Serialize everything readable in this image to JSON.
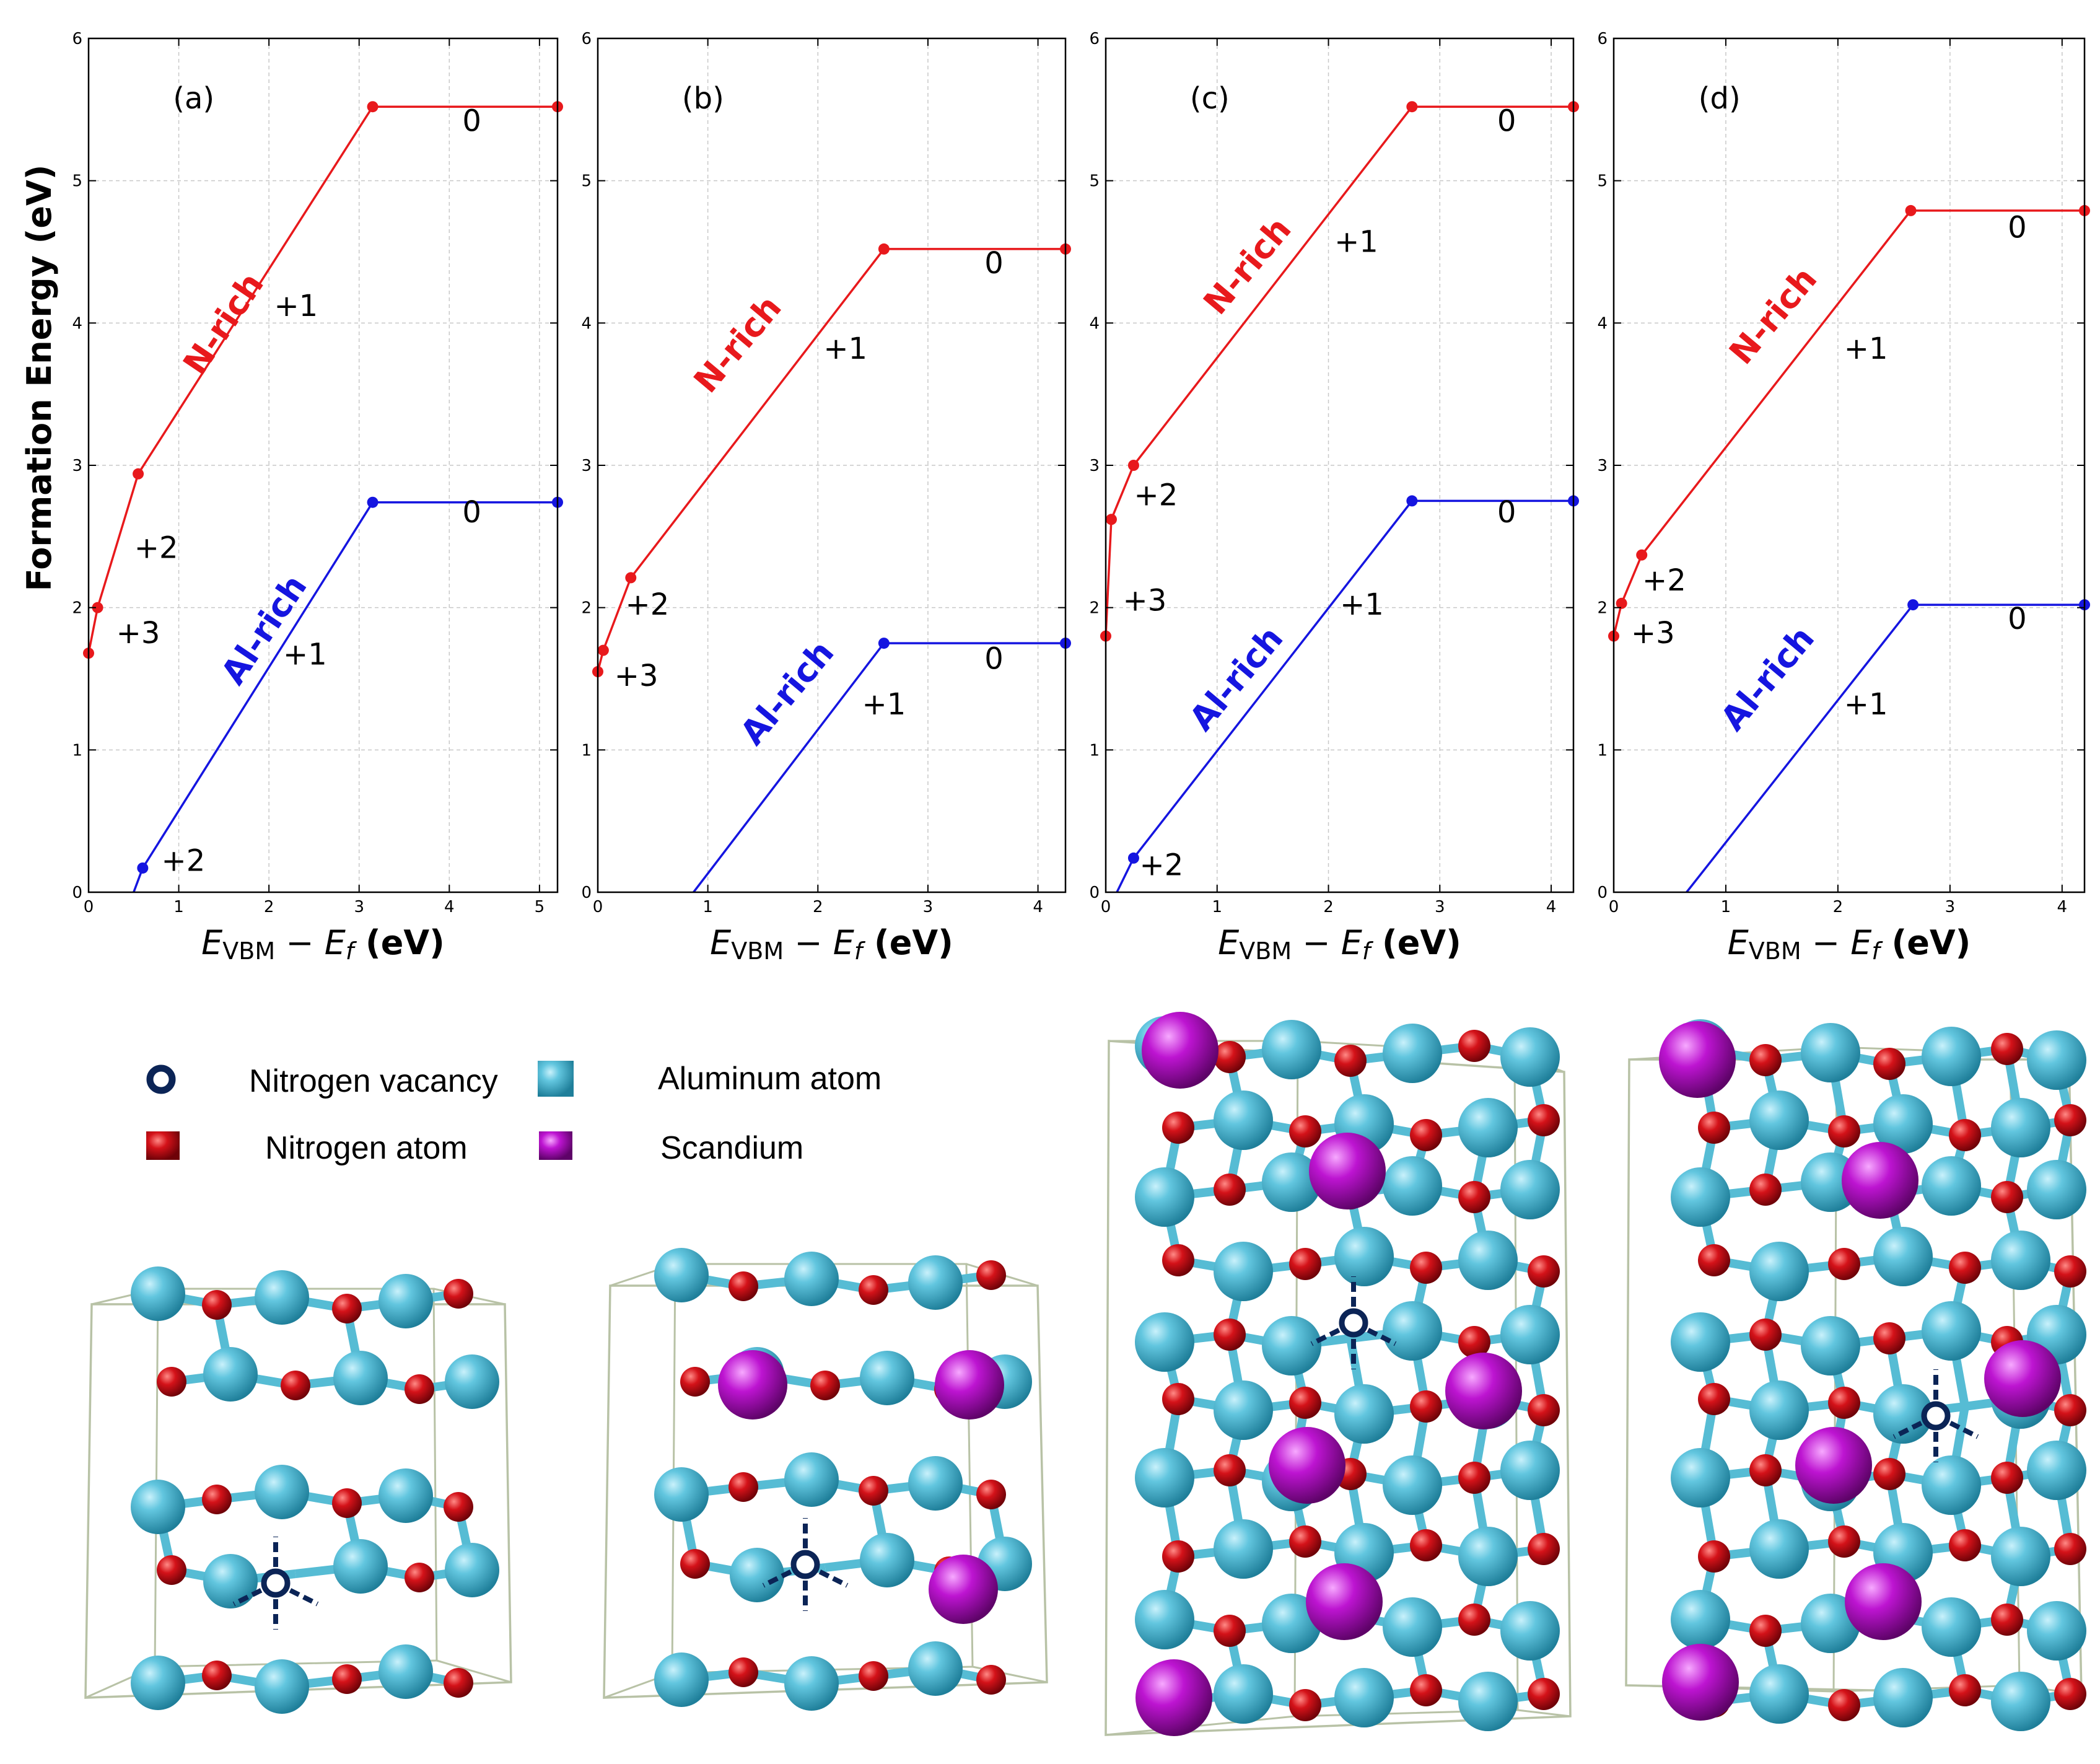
{
  "chart_data": [
    {
      "type": "line",
      "panel_label": "(a)",
      "ylabel": "Formation Energy (eV)",
      "xlabel": "E_VBM − E_f (eV)",
      "xlabel_parts": {
        "e": "E",
        "vbm": "VBM",
        "minus": " − ",
        "ef": "E",
        "f": "f",
        "unit": " (eV)"
      },
      "xlim": [
        0,
        5.2
      ],
      "ylim": [
        0,
        6
      ],
      "xticks": [
        0,
        1,
        2,
        3,
        4,
        5
      ],
      "yticks": [
        0,
        1,
        2,
        3,
        4,
        5,
        6
      ],
      "grid": true,
      "series": [
        {
          "name": "N-rich",
          "color": "#e8191c",
          "x": [
            0,
            0.1,
            0.55,
            3.15,
            5.2
          ],
          "y": [
            1.68,
            2.0,
            2.94,
            5.52,
            5.52
          ],
          "markers": [
            [
              0,
              1.68
            ],
            [
              0.1,
              2.0
            ],
            [
              0.55,
              2.94
            ],
            [
              3.15,
              5.52
            ],
            [
              5.2,
              5.52
            ]
          ],
          "charge_labels": [
            {
              "text": "+3",
              "x": 0.55,
              "y": 1.75
            },
            {
              "text": "+2",
              "x": 0.75,
              "y": 2.35
            },
            {
              "text": "+1",
              "x": 2.3,
              "y": 4.05
            },
            {
              "text": "0",
              "x": 4.25,
              "y": 5.35
            }
          ],
          "label_pos": [
            1.6,
            3.95
          ],
          "label_angle": -56
        },
        {
          "name": "Al-rich",
          "color": "#1515e0",
          "x": [
            0.5,
            0.6,
            3.15,
            5.2
          ],
          "y": [
            0,
            0.17,
            2.74,
            2.74
          ],
          "markers": [
            [
              0.6,
              0.17
            ],
            [
              3.15,
              2.74
            ],
            [
              5.2,
              2.74
            ]
          ],
          "charge_labels": [
            {
              "text": "+2",
              "x": 1.05,
              "y": 0.15
            },
            {
              "text": "+1",
              "x": 2.4,
              "y": 1.6
            },
            {
              "text": "0",
              "x": 4.25,
              "y": 2.6
            }
          ],
          "label_pos": [
            2.05,
            1.8
          ],
          "label_angle": -56
        }
      ]
    },
    {
      "type": "line",
      "panel_label": "(b)",
      "xlabel": "E_VBM − E_f (eV)",
      "xlabel_parts": {
        "e": "E",
        "vbm": "VBM",
        "minus": " − ",
        "ef": "E",
        "f": "f",
        "unit": " (eV)"
      },
      "xlim": [
        0,
        4.25
      ],
      "ylim": [
        0,
        6
      ],
      "xticks": [
        0,
        1,
        2,
        3,
        4
      ],
      "yticks": [
        0,
        1,
        2,
        3,
        4,
        5,
        6
      ],
      "grid": true,
      "series": [
        {
          "name": "N-rich",
          "color": "#e8191c",
          "x": [
            0,
            0.05,
            0.3,
            2.6,
            4.25
          ],
          "y": [
            1.55,
            1.7,
            2.21,
            4.52,
            4.52
          ],
          "markers": [
            [
              0,
              1.55
            ],
            [
              0.05,
              1.7
            ],
            [
              0.3,
              2.21
            ],
            [
              2.6,
              4.52
            ],
            [
              4.25,
              4.52
            ]
          ],
          "charge_labels": [
            {
              "text": "+3",
              "x": 0.35,
              "y": 1.45
            },
            {
              "text": "+2",
              "x": 0.45,
              "y": 1.95
            },
            {
              "text": "+1",
              "x": 2.25,
              "y": 3.75
            },
            {
              "text": "0",
              "x": 3.6,
              "y": 4.35
            }
          ],
          "label_pos": [
            1.35,
            3.8
          ],
          "label_angle": -50
        },
        {
          "name": "Al-rich",
          "color": "#1515e0",
          "x": [
            0.87,
            2.6,
            4.25
          ],
          "y": [
            0,
            1.75,
            1.75
          ],
          "markers": [
            [
              2.6,
              1.75
            ],
            [
              4.25,
              1.75
            ]
          ],
          "charge_labels": [
            {
              "text": "+1",
              "x": 2.6,
              "y": 1.25
            },
            {
              "text": "0",
              "x": 3.6,
              "y": 1.57
            }
          ],
          "label_pos": [
            1.8,
            1.35
          ],
          "label_angle": -50
        }
      ]
    },
    {
      "type": "line",
      "panel_label": "(c)",
      "xlabel": "E_VBM − E_f (eV)",
      "xlabel_parts": {
        "e": "E",
        "vbm": "VBM",
        "minus": " − ",
        "ef": "E",
        "f": "f",
        "unit": " (eV)"
      },
      "xlim": [
        0,
        4.2
      ],
      "ylim": [
        0,
        6
      ],
      "xticks": [
        0,
        1,
        2,
        3,
        4
      ],
      "yticks": [
        0,
        1,
        2,
        3,
        4,
        5,
        6
      ],
      "grid": true,
      "series": [
        {
          "name": "N-rich",
          "color": "#e8191c",
          "x": [
            0,
            0.05,
            0.25,
            2.75,
            4.2
          ],
          "y": [
            1.8,
            2.62,
            3.0,
            5.52,
            5.52
          ],
          "markers": [
            [
              0,
              1.8
            ],
            [
              0.05,
              2.62
            ],
            [
              0.25,
              3.0
            ],
            [
              2.75,
              5.52
            ],
            [
              4.2,
              5.52
            ]
          ],
          "charge_labels": [
            {
              "text": "+3",
              "x": 0.35,
              "y": 1.98
            },
            {
              "text": "+2",
              "x": 0.45,
              "y": 2.72
            },
            {
              "text": "+1",
              "x": 2.25,
              "y": 4.5
            },
            {
              "text": "0",
              "x": 3.6,
              "y": 5.35
            }
          ],
          "label_pos": [
            1.35,
            4.35
          ],
          "label_angle": -50
        },
        {
          "name": "Al-rich",
          "color": "#1515e0",
          "x": [
            0.1,
            0.25,
            2.75,
            4.2
          ],
          "y": [
            0,
            0.24,
            2.75,
            2.75
          ],
          "markers": [
            [
              0.25,
              0.24
            ],
            [
              2.75,
              2.75
            ],
            [
              4.2,
              2.75
            ]
          ],
          "charge_labels": [
            {
              "text": "+2",
              "x": 0.5,
              "y": 0.12
            },
            {
              "text": "+1",
              "x": 2.3,
              "y": 1.95
            },
            {
              "text": "0",
              "x": 3.6,
              "y": 2.6
            }
          ],
          "label_pos": [
            1.25,
            1.45
          ],
          "label_angle": -50
        }
      ]
    },
    {
      "type": "line",
      "panel_label": "(d)",
      "xlabel": "E_VBM − E_f (eV)",
      "xlabel_parts": {
        "e": "E",
        "vbm": "VBM",
        "minus": " − ",
        "ef": "E",
        "f": "f",
        "unit": " (eV)"
      },
      "xlim": [
        0,
        4.2
      ],
      "ylim": [
        0,
        6
      ],
      "xticks": [
        0,
        1,
        2,
        3,
        4
      ],
      "yticks": [
        0,
        1,
        2,
        3,
        4,
        5,
        6
      ],
      "grid": true,
      "series": [
        {
          "name": "N-rich",
          "color": "#e8191c",
          "x": [
            0,
            0.07,
            0.25,
            2.65,
            4.2
          ],
          "y": [
            1.8,
            2.03,
            2.37,
            4.79,
            4.79
          ],
          "markers": [
            [
              0,
              1.8
            ],
            [
              0.07,
              2.03
            ],
            [
              0.25,
              2.37
            ],
            [
              2.65,
              4.79
            ],
            [
              4.2,
              4.79
            ]
          ],
          "charge_labels": [
            {
              "text": "+3",
              "x": 0.35,
              "y": 1.75
            },
            {
              "text": "+2",
              "x": 0.45,
              "y": 2.12
            },
            {
              "text": "+1",
              "x": 2.25,
              "y": 3.75
            },
            {
              "text": "0",
              "x": 3.6,
              "y": 4.6
            }
          ],
          "label_pos": [
            1.5,
            4.0
          ],
          "label_angle": -50
        },
        {
          "name": "Al-rich",
          "color": "#1515e0",
          "x": [
            0.65,
            2.67,
            4.2
          ],
          "y": [
            0,
            2.02,
            2.02
          ],
          "markers": [
            [
              2.67,
              2.02
            ],
            [
              4.2,
              2.02
            ]
          ],
          "charge_labels": [
            {
              "text": "+1",
              "x": 2.25,
              "y": 1.25
            },
            {
              "text": "0",
              "x": 3.6,
              "y": 1.85
            }
          ],
          "label_pos": [
            1.45,
            1.45
          ],
          "label_angle": -50
        }
      ]
    }
  ],
  "legend": {
    "items": [
      {
        "label": "Nitrogen vacancy",
        "symbol": "vacancy-ring",
        "color": "#0b2456"
      },
      {
        "label": "Aluminum atom",
        "symbol": "sphere",
        "color": "#4fbcd8"
      },
      {
        "label": "Nitrogen atom",
        "symbol": "sphere",
        "color": "#d4121a"
      },
      {
        "label": "Scandium",
        "symbol": "sphere",
        "color": "#b515c9"
      }
    ]
  },
  "structures": [
    {
      "panel": "a",
      "contains": [
        "Aluminum atom",
        "Nitrogen atom",
        "Nitrogen vacancy"
      ]
    },
    {
      "panel": "b",
      "contains": [
        "Aluminum atom",
        "Nitrogen atom",
        "Scandium",
        "Nitrogen vacancy"
      ]
    },
    {
      "panel": "c",
      "contains": [
        "Aluminum atom",
        "Nitrogen atom",
        "Scandium",
        "Nitrogen vacancy"
      ]
    },
    {
      "panel": "d",
      "contains": [
        "Aluminum atom",
        "Nitrogen atom",
        "Scandium",
        "Nitrogen vacancy"
      ]
    }
  ],
  "colors": {
    "n_rich": "#e8191c",
    "al_rich": "#1515e0",
    "aluminum": "#4fbcd8",
    "nitrogen": "#d4121a",
    "scandium": "#b515c9",
    "vacancy": "#0b2456",
    "cell": "#b8c2a6",
    "bond_al": "#56bcd4",
    "grid": "#c8c8c8"
  }
}
